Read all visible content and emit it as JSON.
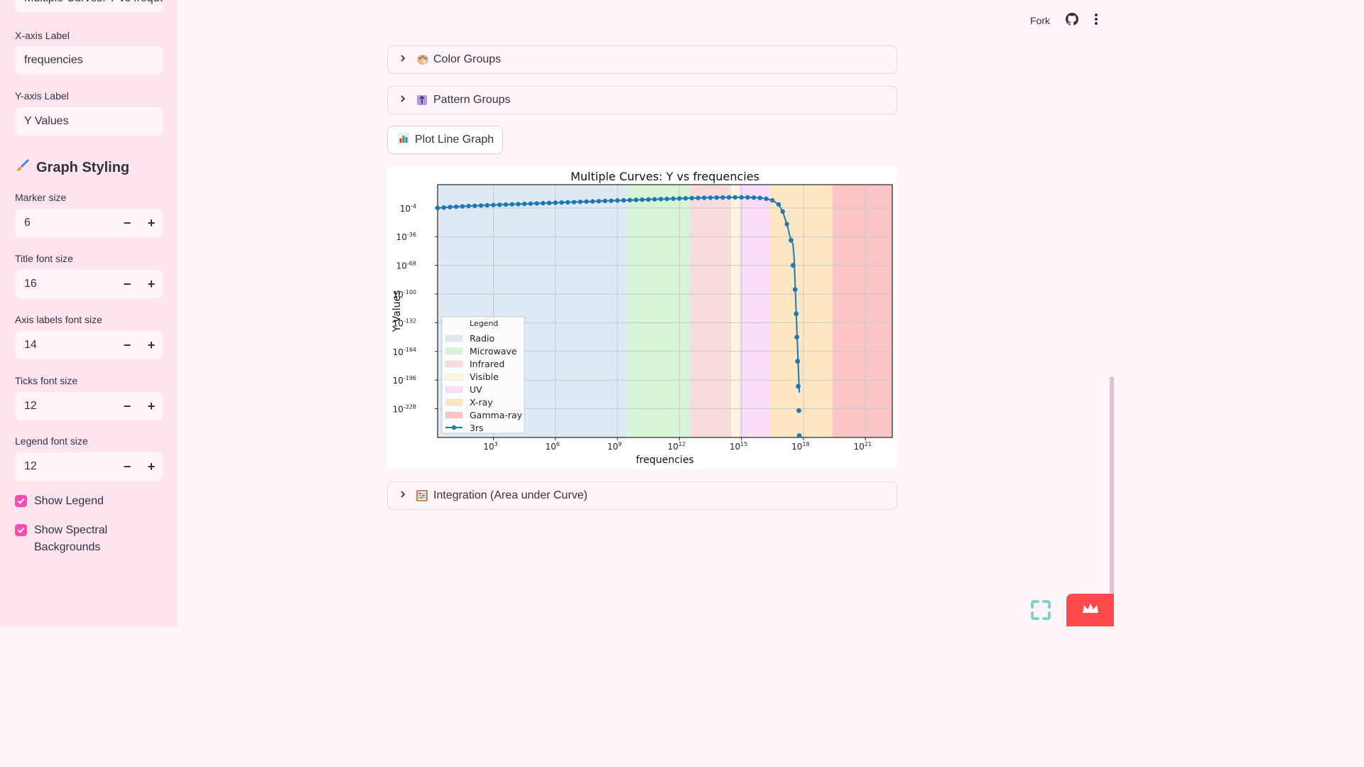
{
  "sidebar": {
    "title_value": "Multiple Curves: Y vs freque",
    "xlabel_label": "X-axis Label",
    "xlabel_value": "frequencies",
    "ylabel_label": "Y-axis Label",
    "ylabel_value": "Y Values",
    "styling_heading": "Graph Styling",
    "marker_label": "Marker size",
    "marker_value": "6",
    "titlefont_label": "Title font size",
    "titlefont_value": "16",
    "axisfont_label": "Axis labels font size",
    "axisfont_value": "14",
    "ticksfont_label": "Ticks font size",
    "ticksfont_value": "12",
    "legendfont_label": "Legend font size",
    "legendfont_value": "12",
    "minus": "−",
    "plus": "+",
    "show_legend": "Show Legend",
    "show_spectral": "Show Spectral Backgrounds"
  },
  "header": {
    "fork": "Fork"
  },
  "main": {
    "color_groups": "Color Groups",
    "pattern_groups": "Pattern Groups",
    "plot_button": "Plot Line Graph",
    "integration": "Integration (Area under Curve)"
  },
  "colors": {
    "accent": "#ff4bb4",
    "line": "#1f77b4",
    "sidebar_bg": "#fde4ef",
    "page_bg": "#fff5fa"
  },
  "chart_data": {
    "type": "line",
    "title": "Multiple Curves: Y vs frequencies",
    "xlabel": "frequencies",
    "ylabel": "Y Values",
    "x_scale": "log",
    "y_scale": "log",
    "xlim_exp": [
      0.3,
      22.3
    ],
    "ylim_exp": [
      -260,
      22
    ],
    "x_ticks": [
      "10^3",
      "10^6",
      "10^9",
      "10^12",
      "10^15",
      "10^18",
      "10^21"
    ],
    "x_tick_exps": [
      3,
      6,
      9,
      12,
      15,
      18,
      21
    ],
    "y_ticks": [
      "10^-4",
      "10^-36",
      "10^-68",
      "10^-100",
      "10^-132",
      "10^-164",
      "10^-196",
      "10^-228"
    ],
    "y_tick_exps": [
      -4,
      -36,
      -68,
      -100,
      -132,
      -164,
      -196,
      -228
    ],
    "grid": true,
    "legend_title": "Legend",
    "legend_position": "lower-left",
    "bands": [
      {
        "name": "Radio",
        "from_exp": 0.3,
        "to_exp": 9.5,
        "color": "#dbeaf5"
      },
      {
        "name": "Microwave",
        "from_exp": 9.5,
        "to_exp": 12.5,
        "color": "#d6f5d6"
      },
      {
        "name": "Infrared",
        "from_exp": 12.5,
        "to_exp": 14.5,
        "color": "#f8dcdc"
      },
      {
        "name": "Visible",
        "from_exp": 14.5,
        "to_exp": 14.9,
        "color": "#fcf6dc"
      },
      {
        "name": "UV",
        "from_exp": 14.9,
        "to_exp": 16.4,
        "color": "#f8dcf8"
      },
      {
        "name": "X-ray",
        "from_exp": 16.4,
        "to_exp": 19.4,
        "color": "#fde7c3"
      },
      {
        "name": "Gamma-ray",
        "from_exp": 19.4,
        "to_exp": 22.3,
        "color": "#fbc5c5"
      }
    ],
    "series": [
      {
        "name": "3rs",
        "x_exp": [
          0.3,
          0.6,
          0.9,
          1.2,
          1.5,
          1.8,
          2.1,
          2.4,
          2.7,
          3.0,
          3.3,
          3.6,
          3.9,
          4.2,
          4.5,
          4.8,
          5.1,
          5.4,
          5.7,
          6.0,
          6.3,
          6.6,
          6.9,
          7.2,
          7.5,
          7.8,
          8.1,
          8.4,
          8.7,
          9.0,
          9.3,
          9.6,
          9.9,
          10.2,
          10.5,
          10.8,
          11.1,
          11.4,
          11.7,
          12.0,
          12.3,
          12.6,
          12.9,
          13.2,
          13.5,
          13.8,
          14.1,
          14.4,
          14.7,
          15.0,
          15.3,
          15.6,
          15.9,
          16.2,
          16.5,
          16.8,
          17.0,
          17.2,
          17.4,
          17.5,
          17.55,
          17.6,
          17.65,
          17.7,
          17.75,
          17.8
        ],
        "y_exp": [
          -4,
          -3.5,
          -3,
          -2.6,
          -2.2,
          -1.9,
          -1.6,
          -1.3,
          -1.0,
          -0.7,
          -0.45,
          -0.2,
          0.05,
          0.3,
          0.55,
          0.8,
          1.05,
          1.3,
          1.55,
          1.8,
          2.05,
          2.3,
          2.55,
          2.8,
          3.05,
          3.3,
          3.55,
          3.8,
          4.05,
          4.3,
          4.5,
          4.75,
          5.0,
          5.2,
          5.45,
          5.7,
          5.9,
          6.1,
          6.35,
          6.55,
          6.75,
          6.95,
          7.15,
          7.3,
          7.45,
          7.6,
          7.7,
          7.8,
          7.85,
          7.85,
          7.8,
          7.6,
          7.2,
          6.3,
          4.5,
          0,
          -8,
          -22,
          -40,
          -45,
          -60,
          -90,
          -120,
          -150,
          -180,
          -210
        ],
        "markers": [
          {
            "x_exp": 17.4,
            "y_exp": -40
          },
          {
            "x_exp": 17.5,
            "y_exp": -68
          },
          {
            "x_exp": 17.6,
            "y_exp": -95
          },
          {
            "x_exp": 17.65,
            "y_exp": -122
          },
          {
            "x_exp": 17.68,
            "y_exp": -148
          },
          {
            "x_exp": 17.72,
            "y_exp": -175
          },
          {
            "x_exp": 17.75,
            "y_exp": -203
          },
          {
            "x_exp": 17.78,
            "y_exp": -230
          },
          {
            "x_exp": 17.8,
            "y_exp": -258
          }
        ]
      }
    ]
  }
}
